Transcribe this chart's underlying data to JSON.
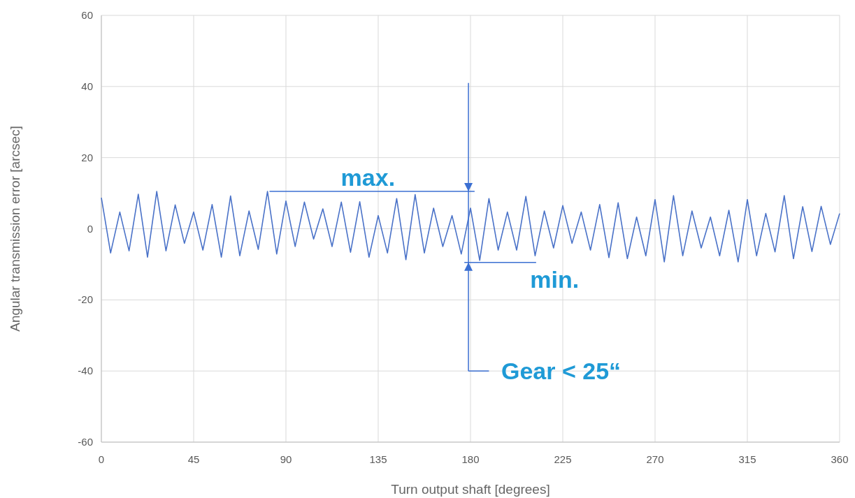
{
  "chart_data": {
    "type": "line",
    "xlabel": "Turn output shaft [degrees]",
    "ylabel": "Angular transmission error  [arcsec]",
    "xlim": [
      0,
      360
    ],
    "xticks": [
      0,
      45,
      90,
      135,
      180,
      225,
      270,
      315,
      360
    ],
    "ylim": [
      -60,
      60
    ],
    "yticks": [
      -60,
      -40,
      -20,
      0,
      20,
      40,
      60
    ],
    "grid": true,
    "marker": "none",
    "line_style": "solid",
    "x": [
      0,
      4.5,
      9,
      13.5,
      18,
      22.5,
      27,
      31.5,
      36,
      40.5,
      45,
      49.5,
      54,
      58.5,
      63,
      67.5,
      72,
      76.5,
      81,
      85.5,
      90,
      94.5,
      99,
      103.5,
      108,
      112.5,
      117,
      121.5,
      126,
      130.5,
      135,
      139.5,
      144,
      148.5,
      153,
      157.5,
      162,
      166.5,
      171,
      175.5,
      180,
      184.5,
      189,
      193.5,
      198,
      202.5,
      207,
      211.5,
      216,
      220.5,
      225,
      229.5,
      234,
      238.5,
      243,
      247.5,
      252,
      256.5,
      261,
      265.5,
      270,
      274.5,
      279,
      283.5,
      288,
      292.5,
      297,
      301.5,
      306,
      310.5,
      315,
      319.5,
      324,
      328.5,
      333,
      337.5,
      342,
      346.5,
      351,
      355.5,
      360
    ],
    "series": [
      {
        "color": "#4a72c8",
        "values": [
          8.7,
          -6.8,
          4.7,
          -6.2,
          9.7,
          -8,
          10.5,
          -6.2,
          6.7,
          -4.1,
          4.7,
          -6,
          6.8,
          -8,
          9.2,
          -7.6,
          5,
          -5.8,
          10.5,
          -7.1,
          7.8,
          -5,
          7.5,
          -2.9,
          5.6,
          -5,
          7.5,
          -6.6,
          7.6,
          -8,
          3.7,
          -6.8,
          8.5,
          -8.7,
          9.6,
          -6.8,
          5.8,
          -5,
          3.7,
          -7.1,
          5.8,
          -8.9,
          8.5,
          -6,
          4.7,
          -6,
          9.1,
          -7.6,
          5,
          -5.4,
          6.5,
          -4.1,
          4.7,
          -6,
          6.8,
          -8.1,
          7.3,
          -8.4,
          3.3,
          -7.6,
          8.2,
          -9.3,
          9.3,
          -7.6,
          5,
          -5.4,
          3.3,
          -7.6,
          5.2,
          -9.3,
          8.2,
          -7.6,
          4.3,
          -6.5,
          9.3,
          -8.4,
          6.2,
          -6.4,
          6.3,
          -4.4,
          4.3
        ]
      }
    ],
    "ref_lines": [
      {
        "axis": "y",
        "value": 10.5,
        "label": "max.",
        "color": "#3b6fd2"
      },
      {
        "axis": "y",
        "value": -9.5,
        "label": "min.",
        "color": "#3b6fd2"
      },
      {
        "axis": "x",
        "value": 179,
        "label": "Gear < 25“",
        "color": "#3b6fd2"
      }
    ]
  }
}
